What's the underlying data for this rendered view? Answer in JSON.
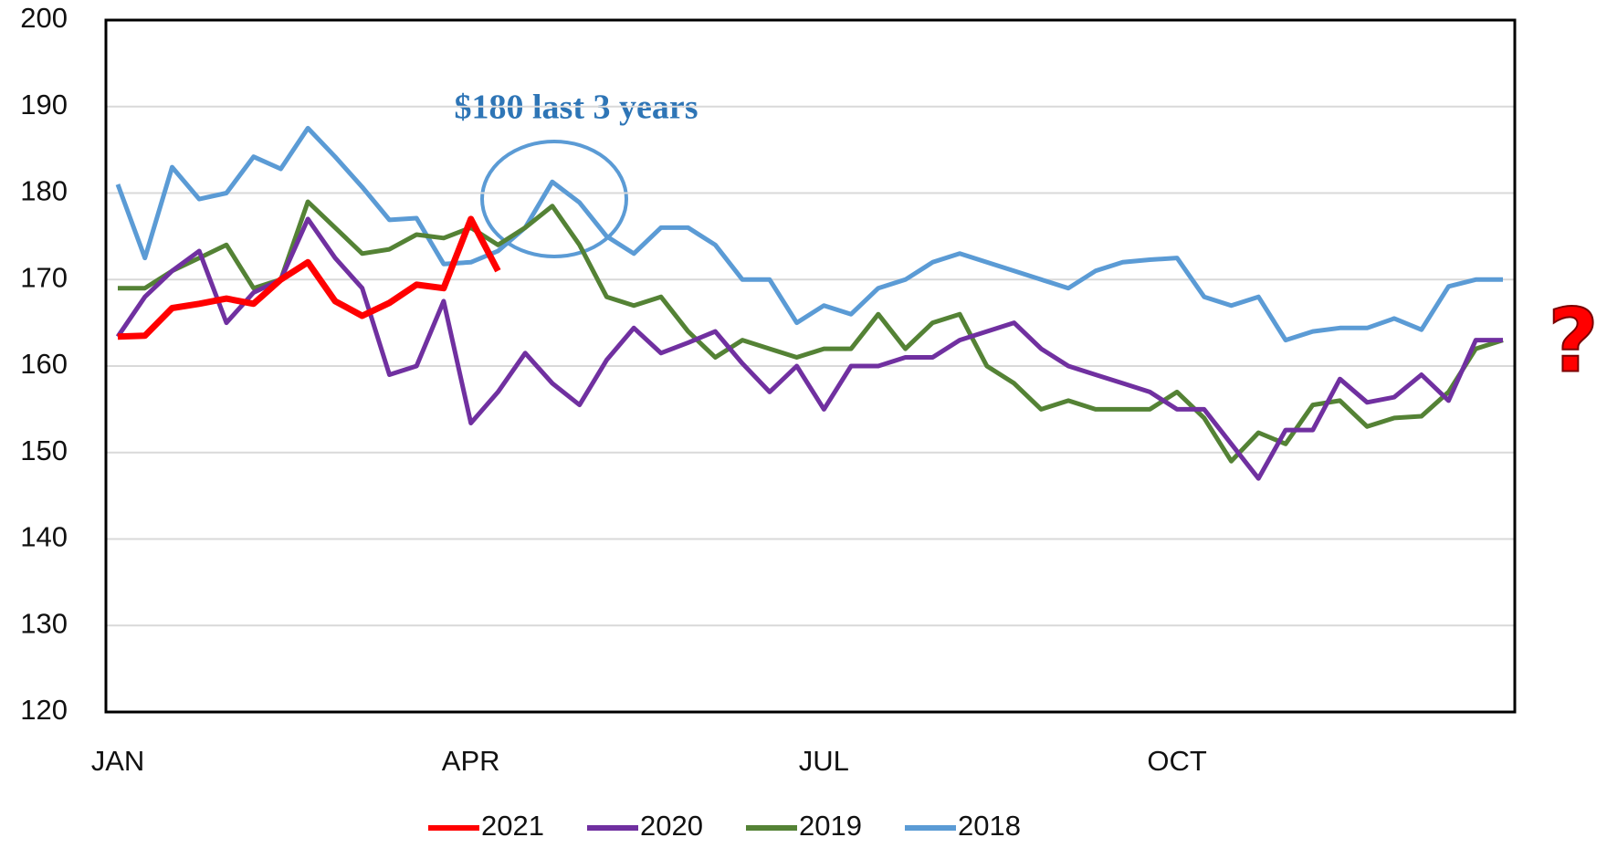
{
  "chart_data": {
    "type": "line",
    "categories": [
      "JAN",
      null,
      null,
      null,
      null,
      null,
      null,
      null,
      null,
      null,
      null,
      null,
      null,
      "APR",
      null,
      null,
      null,
      null,
      null,
      null,
      null,
      null,
      null,
      null,
      null,
      null,
      "JUL",
      null,
      null,
      null,
      null,
      null,
      null,
      null,
      null,
      null,
      null,
      null,
      null,
      "OCT",
      null,
      null,
      null,
      null,
      null,
      null,
      null,
      null,
      null,
      null,
      null,
      null
    ],
    "ylim": [
      120,
      200
    ],
    "yticks": [
      120,
      130,
      140,
      150,
      160,
      170,
      180,
      190,
      200
    ],
    "grid": true,
    "legend": "bottom",
    "annotations": [
      "$180 last 3 years",
      "?"
    ],
    "series": [
      {
        "name": "2021",
        "color": "#ff0000",
        "values": [
          163.4,
          163.5,
          166.7,
          167.2,
          167.8,
          167.2,
          170,
          172,
          167.5,
          165.8,
          167.3,
          169.4,
          169,
          177,
          171,
          null,
          null,
          null,
          null,
          null,
          null,
          null,
          null,
          null,
          null,
          null,
          null,
          null,
          null,
          null,
          null,
          null,
          null,
          null,
          null,
          null,
          null,
          null,
          null,
          null,
          null,
          null,
          null,
          null,
          null,
          null,
          null,
          null,
          null,
          null,
          null,
          null
        ]
      },
      {
        "name": "2020",
        "color": "#7030a0",
        "values": [
          163.4,
          168,
          171,
          173.3,
          165,
          168.5,
          170,
          177,
          172.5,
          169,
          159,
          160,
          167.5,
          153.4,
          157,
          161.5,
          158,
          155.5,
          160.7,
          164.4,
          161.5,
          162.7,
          164,
          160.3,
          157,
          160,
          155,
          160,
          160,
          161,
          161,
          163,
          164,
          165,
          162,
          160,
          159,
          158,
          157,
          155,
          155,
          151,
          147,
          152.6,
          152.6,
          158.5,
          155.8,
          156.4,
          159,
          156,
          163,
          163
        ]
      },
      {
        "name": "2019",
        "color": "#548235",
        "values": [
          169,
          169,
          171,
          172.5,
          174,
          169,
          170,
          179,
          176,
          173,
          173.5,
          175.2,
          174.8,
          176,
          174,
          176,
          178.5,
          174,
          168,
          167,
          168,
          164,
          161,
          163,
          162,
          161,
          162,
          162,
          166,
          162,
          165,
          166,
          160,
          158,
          155,
          156,
          155,
          155,
          155,
          157,
          154,
          149,
          152.3,
          151,
          155.5,
          156,
          153,
          154,
          154.2,
          157,
          162,
          163
        ]
      },
      {
        "name": "2018",
        "color": "#5b9bd5",
        "values": [
          181,
          172.5,
          183,
          179.3,
          180,
          184.2,
          182.8,
          187.5,
          184.2,
          180.7,
          176.9,
          177.1,
          171.8,
          172,
          173.3,
          176,
          181.3,
          178.9,
          175,
          173,
          176,
          176,
          174,
          170,
          170,
          165,
          167,
          166,
          169,
          170,
          172,
          173,
          172,
          171,
          170,
          169,
          171,
          172,
          172.3,
          172.5,
          168,
          167,
          168,
          163,
          164,
          164.4,
          164.4,
          165.5,
          164.2,
          169.2,
          170,
          170
        ]
      }
    ]
  }
}
